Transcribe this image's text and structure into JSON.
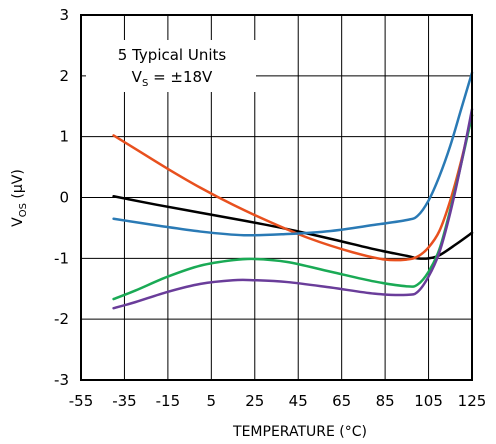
{
  "chart_data": {
    "type": "line",
    "xlabel": "TEMPERATURE (°C)",
    "ylabel_main": "V",
    "ylabel_sub": "OS",
    "ylabel_unit": " (µV)",
    "annotation_line1": "5 Typical Units",
    "annotation_line2_main": "V",
    "annotation_line2_sub": "S",
    "annotation_line2_rest": " = ±18V",
    "xlim": [
      -55,
      125
    ],
    "ylim": [
      -3,
      3
    ],
    "x_ticks": [
      -55,
      -35,
      -15,
      5,
      25,
      45,
      65,
      85,
      105,
      125
    ],
    "y_ticks": [
      -3,
      -2,
      -1,
      0,
      1,
      2,
      3
    ],
    "grid": true,
    "series": [
      {
        "color": "#000000",
        "points": [
          [
            -40,
            0.02
          ],
          [
            -20,
            -0.12
          ],
          [
            0,
            -0.25
          ],
          [
            20,
            -0.38
          ],
          [
            40,
            -0.52
          ],
          [
            60,
            -0.68
          ],
          [
            80,
            -0.85
          ],
          [
            95,
            -0.96
          ],
          [
            100,
            -1.0
          ],
          [
            105,
            -1.0
          ],
          [
            110,
            -0.95
          ],
          [
            118,
            -0.76
          ],
          [
            125,
            -0.58
          ]
        ]
      },
      {
        "color": "#e8501e",
        "points": [
          [
            -40,
            1.02
          ],
          [
            -30,
            0.8
          ],
          [
            -15,
            0.47
          ],
          [
            0,
            0.16
          ],
          [
            15,
            -0.12
          ],
          [
            30,
            -0.37
          ],
          [
            50,
            -0.67
          ],
          [
            70,
            -0.9
          ],
          [
            85,
            -1.02
          ],
          [
            95,
            -1.02
          ],
          [
            100,
            -0.97
          ],
          [
            105,
            -0.82
          ],
          [
            110,
            -0.55
          ],
          [
            115,
            -0.05
          ],
          [
            120,
            0.6
          ],
          [
            125,
            1.35
          ]
        ]
      },
      {
        "color": "#2a7ab5",
        "points": [
          [
            -40,
            -0.35
          ],
          [
            -20,
            -0.46
          ],
          [
            0,
            -0.56
          ],
          [
            20,
            -0.62
          ],
          [
            40,
            -0.6
          ],
          [
            60,
            -0.55
          ],
          [
            80,
            -0.45
          ],
          [
            95,
            -0.37
          ],
          [
            100,
            -0.3
          ],
          [
            105,
            -0.05
          ],
          [
            110,
            0.35
          ],
          [
            115,
            0.85
          ],
          [
            120,
            1.45
          ],
          [
            125,
            2.05
          ]
        ]
      },
      {
        "color": "#1aaa55",
        "points": [
          [
            -40,
            -1.67
          ],
          [
            -30,
            -1.53
          ],
          [
            -15,
            -1.3
          ],
          [
            0,
            -1.12
          ],
          [
            15,
            -1.03
          ],
          [
            25,
            -1.01
          ],
          [
            40,
            -1.06
          ],
          [
            60,
            -1.22
          ],
          [
            80,
            -1.38
          ],
          [
            95,
            -1.46
          ],
          [
            100,
            -1.43
          ],
          [
            105,
            -1.22
          ],
          [
            110,
            -0.85
          ],
          [
            115,
            -0.2
          ],
          [
            120,
            0.55
          ],
          [
            125,
            1.35
          ]
        ]
      },
      {
        "color": "#6a3d9a",
        "points": [
          [
            -40,
            -1.82
          ],
          [
            -30,
            -1.72
          ],
          [
            -15,
            -1.55
          ],
          [
            0,
            -1.42
          ],
          [
            15,
            -1.36
          ],
          [
            25,
            -1.36
          ],
          [
            40,
            -1.39
          ],
          [
            60,
            -1.48
          ],
          [
            80,
            -1.58
          ],
          [
            95,
            -1.6
          ],
          [
            100,
            -1.55
          ],
          [
            105,
            -1.3
          ],
          [
            110,
            -0.9
          ],
          [
            115,
            -0.25
          ],
          [
            120,
            0.55
          ],
          [
            125,
            1.45
          ]
        ]
      }
    ]
  }
}
